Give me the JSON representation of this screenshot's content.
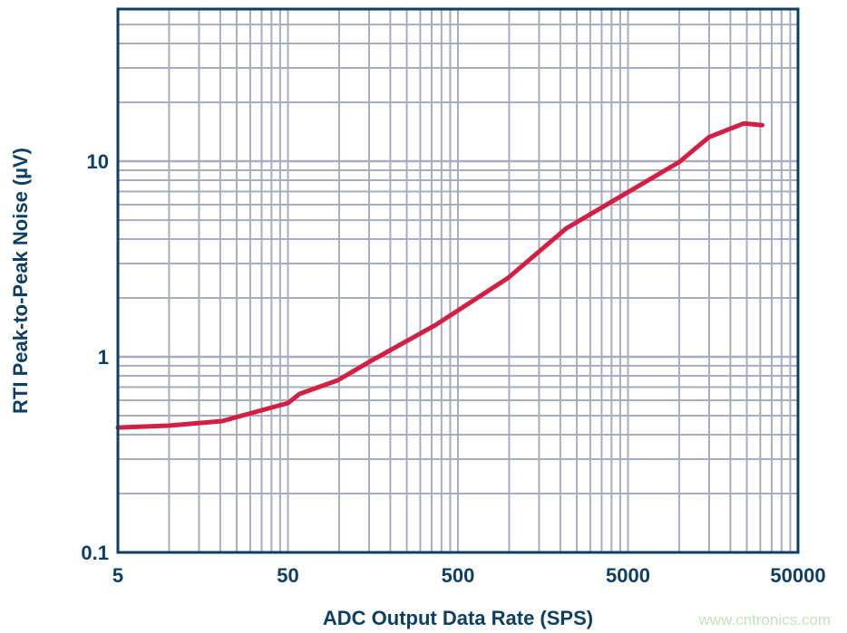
{
  "chart_data": {
    "type": "line",
    "title": "",
    "xlabel": "ADC Output Data Rate (SPS)",
    "ylabel": "RTI Peak-to-Peak Noise (µV)",
    "x_scale": "log",
    "y_scale": "log",
    "xlim": [
      5,
      50000
    ],
    "ylim": [
      0.1,
      60
    ],
    "grid": true,
    "x_ticks": [
      "5",
      "50",
      "500",
      "5000",
      "50000"
    ],
    "y_ticks": [
      "0.1",
      "1",
      "10"
    ],
    "series": [
      {
        "color": "#d41f45",
        "x": [
          5,
          10,
          20.5,
          50,
          58.5,
          98,
          153,
          367,
          985,
          2170,
          5000,
          10000,
          15000,
          24000,
          30800
        ],
        "y": [
          0.435,
          0.445,
          0.469,
          0.58,
          0.646,
          0.758,
          0.95,
          1.45,
          2.53,
          4.54,
          6.95,
          9.9,
          13.3,
          15.6,
          15.3
        ]
      }
    ]
  },
  "colors": {
    "axis": "#0d3f66",
    "grid": "#a9acc0",
    "curve": "#d41f45",
    "watermark": "#c4e3bd"
  },
  "watermark": "www.cntronics.com"
}
